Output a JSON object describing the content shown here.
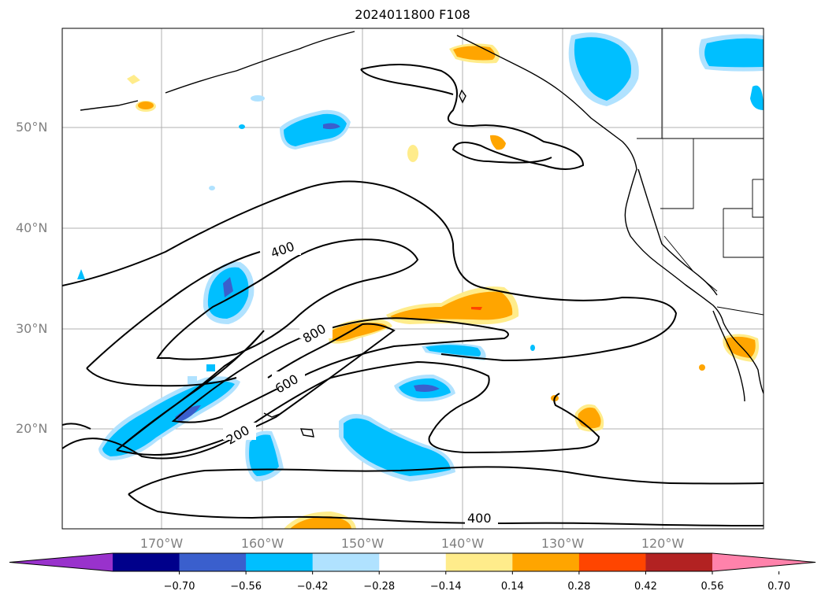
{
  "title": "2024011800 F108",
  "lat_labels": [
    "50°N",
    "40°N",
    "30°N",
    "20°N"
  ],
  "lon_labels": [
    "170°W",
    "160°W",
    "150°W",
    "140°W",
    "130°W",
    "120°W"
  ],
  "contour_labels": [
    "400",
    "800",
    "600",
    "200",
    "400"
  ],
  "colorbar": {
    "ticks": [
      "−0.70",
      "−0.56",
      "−0.42",
      "−0.28",
      "−0.14",
      "0.14",
      "0.28",
      "0.42",
      "0.56",
      "0.70"
    ],
    "colors": [
      "#9932cc",
      "#00008b",
      "#3a5fcd",
      "#00bfff",
      "#b0e2ff",
      "#ffffff",
      "#ffec8b",
      "#ffa500",
      "#ff4500",
      "#b22222",
      "#ff82ab"
    ]
  },
  "colors": {
    "coast": "#000000",
    "grid": "#b0b0b0",
    "contour": "#000000"
  }
}
